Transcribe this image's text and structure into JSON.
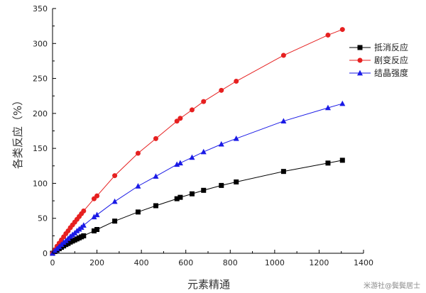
{
  "chart_data": {
    "type": "line",
    "title": "",
    "xlabel": "元素精通",
    "ylabel": "各类反应（%）",
    "xlim": [
      0,
      1400
    ],
    "ylim": [
      0,
      350
    ],
    "xticks": [
      0,
      200,
      400,
      600,
      800,
      1000,
      1200,
      1400
    ],
    "yticks": [
      0,
      50,
      100,
      150,
      200,
      250,
      300,
      350
    ],
    "grid": false,
    "legend_position": "top-right",
    "series": [
      {
        "name": "抵消反应",
        "color": "#000000",
        "marker": "square",
        "x": [
          0,
          10,
          20,
          30,
          40,
          50,
          60,
          70,
          80,
          90,
          100,
          110,
          120,
          130,
          140,
          187,
          200,
          280,
          385,
          465,
          560,
          575,
          628,
          680,
          760,
          827,
          1040,
          1240,
          1305
        ],
        "y": [
          0,
          2.5,
          4.5,
          6.5,
          8.5,
          10.5,
          12.5,
          14,
          16,
          17.5,
          19,
          20.5,
          22,
          23.5,
          25,
          32,
          34,
          46,
          59,
          68,
          78,
          80,
          85,
          90,
          97,
          102,
          117,
          129,
          133
        ]
      },
      {
        "name": "剧变反应",
        "color": "#e62020",
        "marker": "circle",
        "x": [
          0,
          10,
          20,
          30,
          40,
          50,
          60,
          70,
          80,
          90,
          100,
          110,
          120,
          130,
          140,
          187,
          200,
          280,
          385,
          465,
          560,
          575,
          628,
          680,
          760,
          827,
          1040,
          1240,
          1305
        ],
        "y": [
          0,
          5,
          10,
          14.5,
          19,
          23.5,
          28,
          32,
          36.5,
          40.5,
          44.5,
          48.5,
          52.5,
          56.5,
          60.5,
          78,
          82,
          111,
          143,
          164,
          189,
          193,
          205,
          217,
          233,
          246,
          283,
          312,
          320
        ]
      },
      {
        "name": "结晶强度",
        "color": "#1a1ae6",
        "marker": "triangle",
        "x": [
          0,
          10,
          20,
          30,
          40,
          50,
          60,
          70,
          80,
          90,
          100,
          110,
          120,
          130,
          140,
          187,
          200,
          280,
          385,
          465,
          560,
          575,
          628,
          680,
          760,
          827,
          1040,
          1240,
          1305
        ],
        "y": [
          0,
          3.5,
          6.5,
          9.5,
          12.5,
          15.5,
          18,
          21,
          24,
          26.5,
          29,
          32,
          34.5,
          37,
          40,
          52,
          55,
          74,
          96,
          110,
          127,
          129,
          137,
          145,
          156,
          164,
          189,
          208,
          214
        ]
      }
    ]
  },
  "watermark": "米游社@鬓鬓居士"
}
